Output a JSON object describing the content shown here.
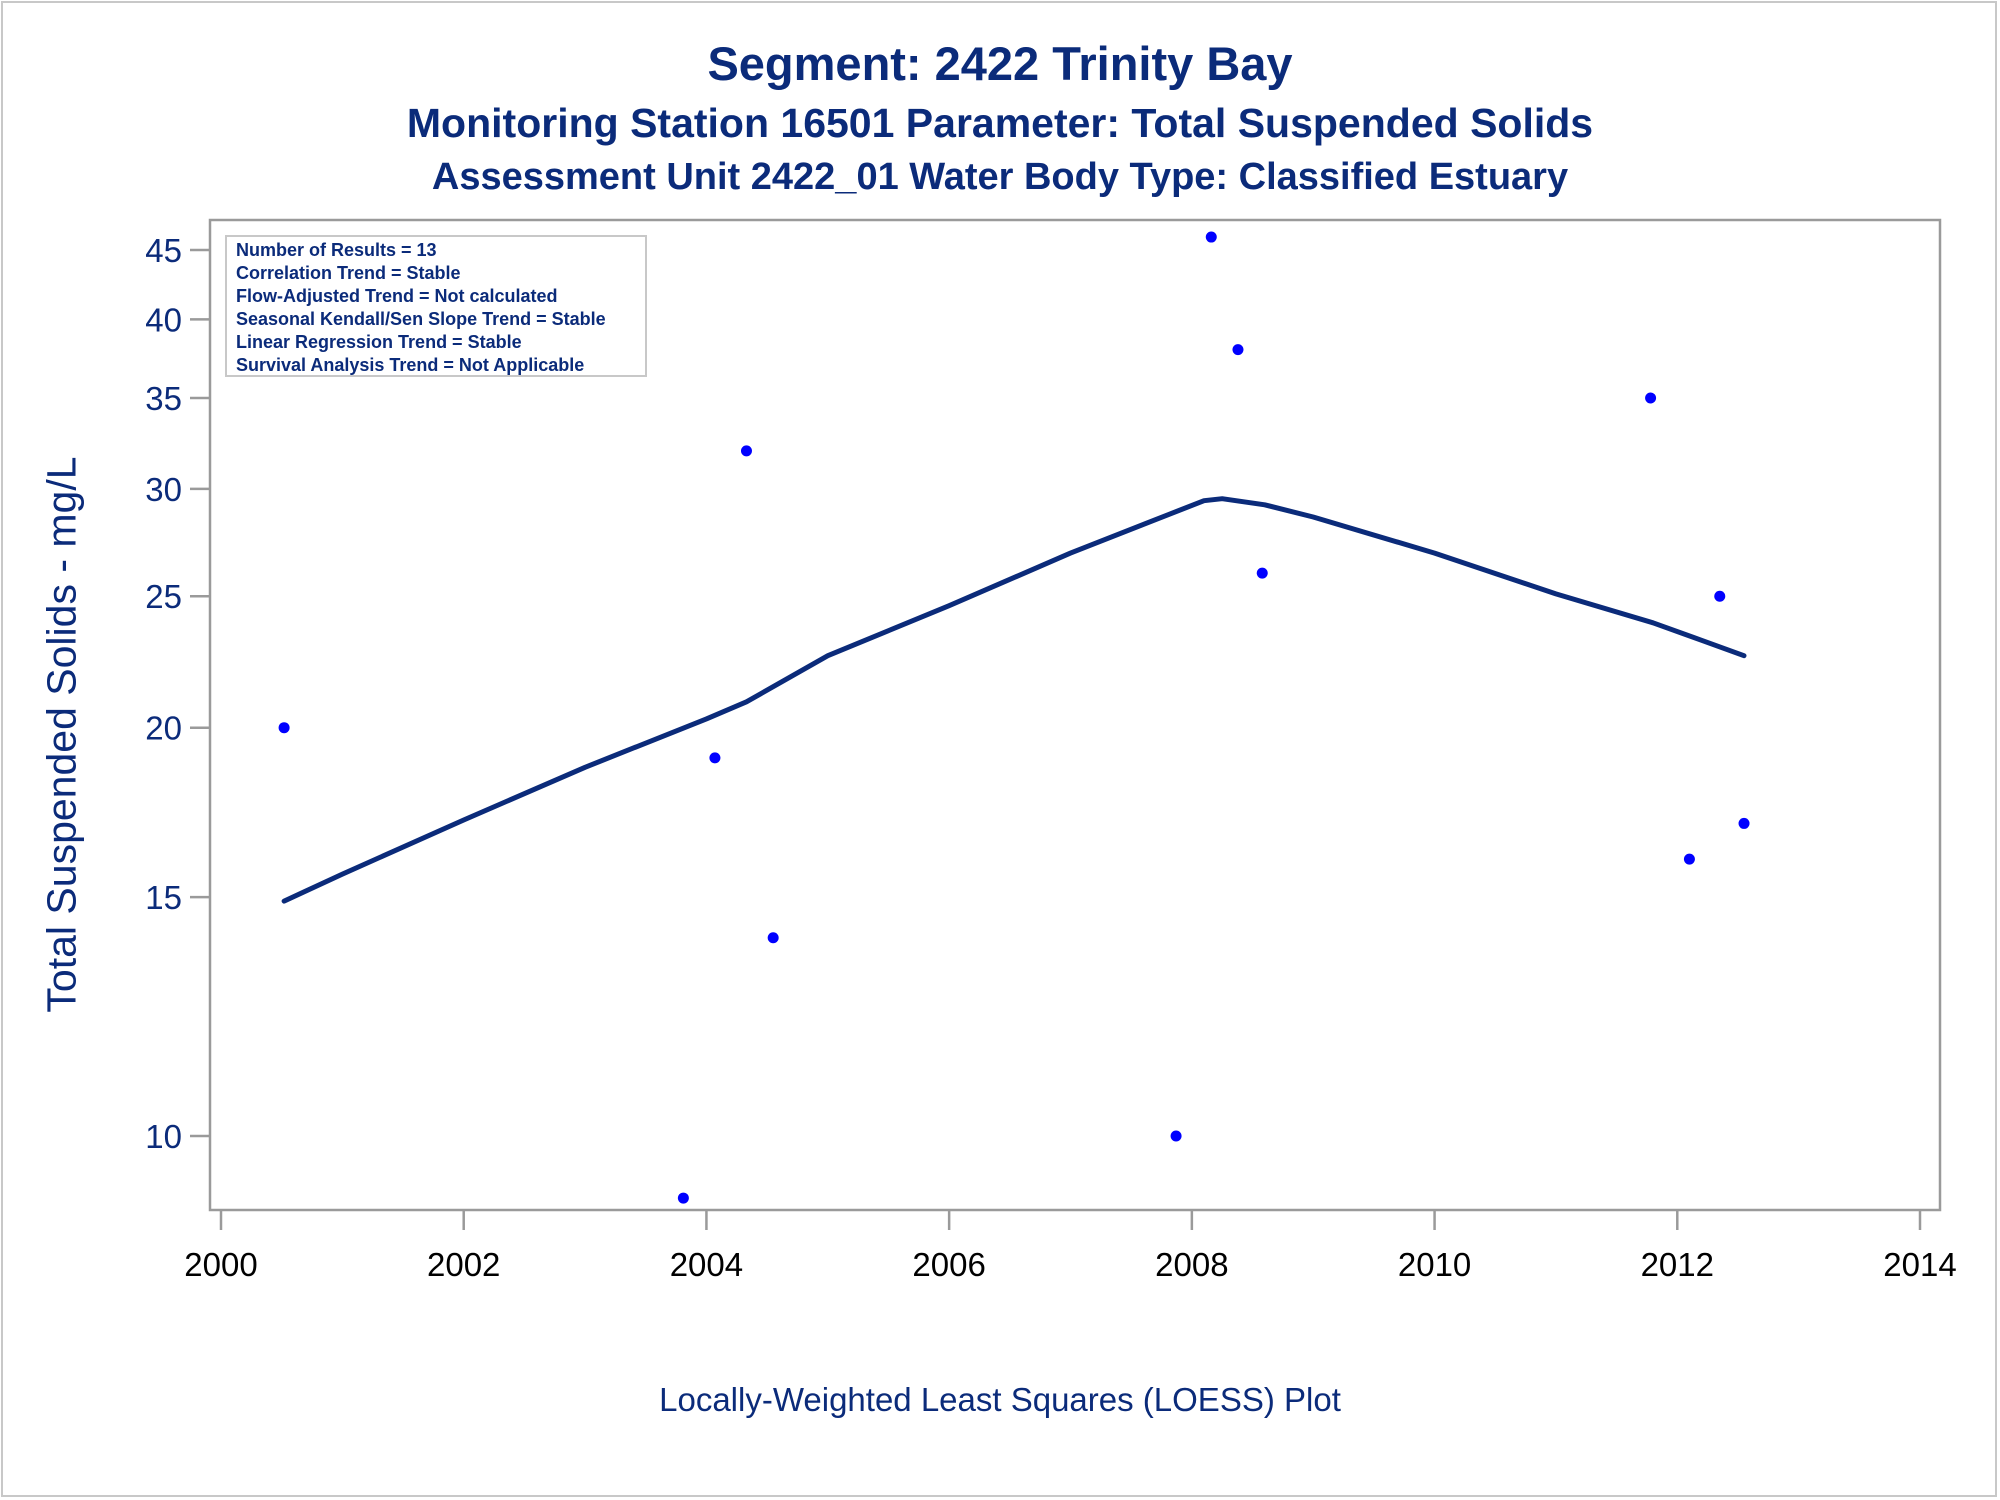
{
  "chart_data": {
    "type": "scatter",
    "title": "Segment: 2422  Trinity Bay",
    "subtitle": "Monitoring Station 16501 Parameter: Total Suspended Solids",
    "subtitle2": "Assessment Unit 2422_01   Water Body Type: Classified Estuary",
    "xlabel": "Locally-Weighted Least Squares (LOESS) Plot",
    "ylabel": "Total Suspended Solids - mg/L",
    "y_scale": "log",
    "xlim": [
      2000,
      2014
    ],
    "ylim": [
      9,
      47
    ],
    "x_ticks": [
      2000,
      2002,
      2004,
      2006,
      2008,
      2010,
      2012,
      2014
    ],
    "y_ticks": [
      10,
      15,
      20,
      25,
      30,
      35,
      40,
      45
    ],
    "grid": false,
    "legend_position": "top-left",
    "stats_box": [
      "Number of Results = 13",
      "Correlation Trend = Stable",
      "Flow-Adjusted Trend = Not calculated",
      "Seasonal Kendall/Sen Slope Trend = Stable",
      "Linear Regression Trend = Stable",
      "Survival Analysis Trend = Not Applicable"
    ],
    "points": {
      "x": [
        2000.52,
        2003.81,
        2004.07,
        2004.33,
        2004.55,
        2007.87,
        2008.16,
        2008.38,
        2008.58,
        2011.78,
        2012.1,
        2012.35,
        2012.55
      ],
      "y": [
        20,
        9,
        19,
        32,
        14,
        10,
        46,
        38,
        26,
        35,
        16,
        25,
        17
      ],
      "color": "#0000ff"
    },
    "loess": {
      "x": [
        2000.52,
        2001.0,
        2002.0,
        2003.0,
        2004.0,
        2004.33,
        2005.0,
        2006.0,
        2007.0,
        2007.8,
        2008.1,
        2008.25,
        2008.6,
        2009.0,
        2010.0,
        2011.0,
        2011.8,
        2012.2,
        2012.55
      ],
      "y": [
        14.9,
        15.6,
        17.1,
        18.7,
        20.3,
        20.9,
        22.6,
        24.6,
        26.9,
        28.7,
        29.4,
        29.5,
        29.2,
        28.6,
        26.9,
        25.1,
        23.9,
        23.2,
        22.6
      ],
      "color": "#0b2b7a"
    }
  }
}
